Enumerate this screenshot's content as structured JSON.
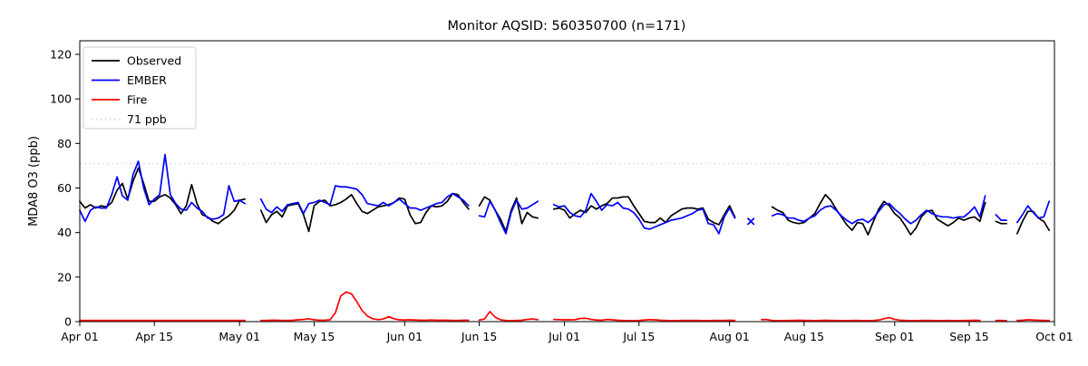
{
  "chart_data": {
    "type": "line",
    "title": "Monitor AQSID: 560350700 (n=171)",
    "xlabel": "",
    "ylabel": "MDA8 O3 (ppb)",
    "x_unit": "day index from Apr 01",
    "xlim_days": [
      0,
      183
    ],
    "ylim": [
      0,
      126.1
    ],
    "grid": false,
    "legend_position": "upper left",
    "y_ticks": [
      0,
      20,
      40,
      60,
      80,
      100,
      120
    ],
    "x_tick_days": [
      0,
      14,
      30,
      44,
      61,
      75,
      91,
      105,
      122,
      136,
      153,
      167,
      183
    ],
    "x_tick_labels": [
      "Apr 01",
      "Apr 15",
      "May 01",
      "May 15",
      "Jun 01",
      "Jun 15",
      "Jul 01",
      "Jul 15",
      "Aug 01",
      "Aug 15",
      "Sep 01",
      "Sep 15",
      "Oct 01"
    ],
    "threshold": {
      "value": 71,
      "label": "71 ppb",
      "color": "#d8d8d8",
      "style": "dotted"
    },
    "series": [
      {
        "name": "Observed",
        "color": "#000000",
        "values": [
          54,
          51,
          52.5,
          51,
          52,
          51.5,
          53.5,
          59,
          62,
          55,
          63,
          69,
          62,
          54,
          54,
          56,
          57,
          55.5,
          52.5,
          48.5,
          52,
          61.5,
          53,
          48,
          47,
          45,
          44,
          46,
          47.5,
          50,
          54.5,
          55,
          null,
          null,
          50,
          44.5,
          48,
          49.5,
          47,
          52,
          52.5,
          53,
          48,
          40.5,
          52,
          54,
          54.5,
          52,
          52.5,
          53.5,
          55,
          57,
          53,
          49.5,
          48.5,
          50,
          51.5,
          52,
          52.5,
          53.5,
          55.5,
          55,
          48,
          44,
          44.5,
          49,
          52,
          51.5,
          52,
          54,
          57.5,
          57,
          53.5,
          50.5,
          null,
          52,
          56,
          54.5,
          50,
          46,
          40.5,
          50,
          55.5,
          44,
          49,
          47,
          46.5,
          null,
          null,
          50.5,
          51,
          50,
          46.5,
          48.5,
          50,
          49,
          52,
          50.5,
          52,
          53,
          55.5,
          55.5,
          56,
          56,
          52,
          48.5,
          45,
          44.5,
          44.5,
          46.5,
          44.5,
          47.5,
          49,
          50.5,
          51,
          51,
          50.5,
          51,
          46,
          44.5,
          43.5,
          48,
          52,
          47,
          null,
          null,
          45,
          null,
          null,
          null,
          51.5,
          50,
          49,
          45.5,
          44.5,
          44,
          44.5,
          46.5,
          48.5,
          53,
          57,
          54.5,
          50.5,
          47,
          43.5,
          41,
          44.5,
          44,
          39,
          45,
          50.5,
          54,
          52,
          48.5,
          46.5,
          43,
          39,
          42,
          47,
          49.5,
          50,
          46,
          44.5,
          43,
          44.5,
          46.5,
          45.5,
          46.5,
          47,
          45,
          53.5,
          null,
          45,
          44,
          44,
          null,
          39.5,
          45,
          49.5,
          49.5,
          46.5,
          45,
          41
        ]
      },
      {
        "name": "EMBER",
        "color": "#0000ff",
        "values": [
          50,
          45,
          50,
          51.5,
          51,
          51,
          57,
          65,
          56.5,
          54.5,
          66,
          72,
          60,
          52.5,
          55,
          57,
          75,
          57,
          53,
          50.5,
          50,
          53.5,
          51,
          49.5,
          46.5,
          46,
          46.5,
          48,
          61,
          54,
          54.5,
          53,
          null,
          null,
          55,
          50.5,
          49,
          51.5,
          49.5,
          52.5,
          53,
          53.5,
          48.5,
          53,
          53.5,
          54.5,
          53.5,
          52.5,
          61,
          60.5,
          60.5,
          60,
          59.5,
          57,
          53,
          52.5,
          52,
          53.5,
          52,
          53.5,
          55,
          53,
          51,
          51,
          50,
          51,
          52,
          53,
          53.5,
          56,
          57.5,
          56,
          54.5,
          52,
          null,
          47.5,
          47,
          54,
          50,
          44.5,
          39.5,
          49,
          54.5,
          50.5,
          51,
          52.5,
          54,
          null,
          null,
          52.5,
          51.5,
          52,
          49,
          47.5,
          47,
          50,
          57.5,
          54,
          50,
          52.5,
          52,
          53.5,
          51,
          50.5,
          49,
          46,
          42,
          41.5,
          42.5,
          43.5,
          44.5,
          45.5,
          46,
          46.5,
          47.5,
          48.5,
          50,
          50.5,
          44,
          43.5,
          39.5,
          47,
          51,
          46.5,
          null,
          null,
          45,
          null,
          null,
          null,
          47.5,
          48.5,
          48,
          46.5,
          46.5,
          45.5,
          45,
          46.5,
          47.5,
          50,
          51.5,
          52,
          50,
          47.5,
          45.5,
          44,
          45.5,
          46,
          44.5,
          46.5,
          49.5,
          52.5,
          53,
          50.5,
          48.5,
          46,
          44,
          45.5,
          48,
          50,
          48.5,
          47.5,
          47,
          47,
          46.5,
          47,
          47,
          49,
          51.5,
          47,
          56.5,
          null,
          48,
          45.5,
          45.5,
          null,
          44.5,
          48,
          52,
          49,
          46.5,
          47,
          54
        ]
      },
      {
        "name": "Fire",
        "color": "#ff0000",
        "values": [
          0.5,
          0.5,
          0.5,
          0.5,
          0.5,
          0.5,
          0.5,
          0.5,
          0.5,
          0.5,
          0.5,
          0.5,
          0.5,
          0.5,
          0.5,
          0.5,
          0.5,
          0.5,
          0.5,
          0.5,
          0.5,
          0.5,
          0.5,
          0.5,
          0.5,
          0.5,
          0.5,
          0.5,
          0.5,
          0.5,
          0.5,
          0.5,
          null,
          null,
          0.5,
          0.5,
          0.6,
          0.6,
          0.5,
          0.5,
          0.6,
          0.8,
          1.0,
          1.3,
          0.8,
          0.6,
          0.6,
          0.8,
          4.0,
          11.5,
          13.3,
          12.5,
          9.0,
          5.0,
          2.5,
          1.3,
          0.9,
          1.2,
          2.2,
          1.3,
          0.8,
          0.7,
          0.8,
          0.7,
          0.6,
          0.6,
          0.7,
          0.6,
          0.6,
          0.6,
          0.5,
          0.5,
          0.6,
          0.6,
          null,
          0.7,
          1.2,
          4.5,
          2.0,
          0.8,
          0.5,
          0.4,
          0.5,
          0.6,
          1.0,
          1.2,
          0.9,
          null,
          null,
          1.0,
          0.9,
          0.8,
          0.8,
          0.9,
          1.4,
          1.5,
          1.0,
          0.7,
          0.6,
          1.0,
          0.8,
          0.6,
          0.5,
          0.4,
          0.4,
          0.5,
          0.7,
          0.9,
          0.8,
          0.6,
          0.5,
          0.4,
          0.4,
          0.5,
          0.5,
          0.5,
          0.5,
          0.4,
          0.4,
          0.5,
          0.5,
          0.5,
          0.6,
          0.5,
          null,
          null,
          null,
          null,
          0.9,
          0.9,
          0.5,
          0.4,
          0.4,
          0.5,
          0.5,
          0.6,
          0.5,
          0.5,
          0.4,
          0.5,
          0.6,
          0.5,
          0.5,
          0.4,
          0.4,
          0.5,
          0.5,
          0.4,
          0.4,
          0.5,
          0.7,
          1.3,
          1.8,
          1.0,
          0.6,
          0.5,
          0.4,
          0.4,
          0.5,
          0.5,
          0.5,
          0.4,
          0.4,
          0.5,
          0.4,
          0.4,
          0.5,
          0.5,
          0.6,
          0.5,
          null,
          null,
          0.5,
          0.5,
          0.4,
          null,
          0.5,
          0.6,
          0.8,
          0.7,
          0.6,
          0.5,
          0.5
        ]
      }
    ],
    "legend_entries": [
      "Observed",
      "EMBER",
      "Fire",
      "71 ppb"
    ]
  },
  "chart": {
    "title": "Monitor AQSID: 560350700 (n=171)",
    "ylabel": "MDA8 O3 (ppb)"
  },
  "colors": {
    "background": "#ffffff",
    "axes": "#000000",
    "observed": "#000000",
    "ember": "#0000ff",
    "fire": "#ff0000",
    "threshold": "#d8d8d8"
  }
}
